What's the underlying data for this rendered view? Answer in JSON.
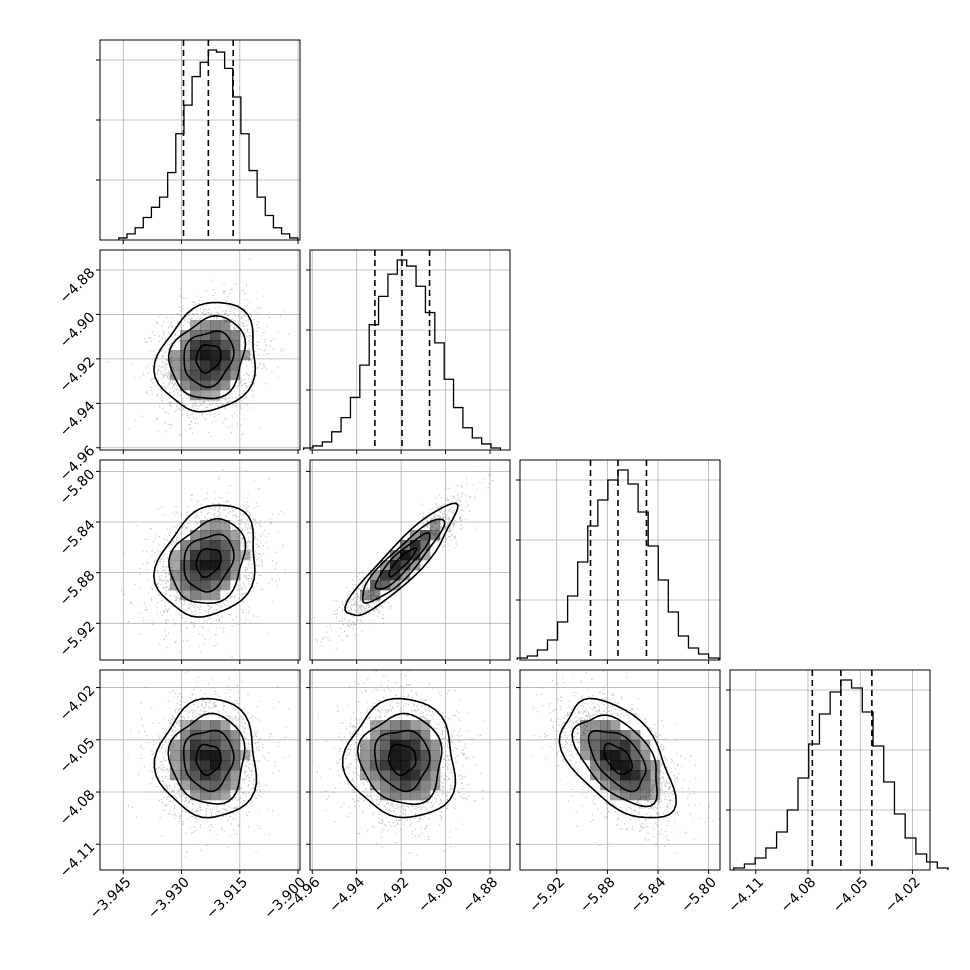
{
  "chart_data": {
    "type": "corner",
    "grid": true,
    "parameters": [
      {
        "range": [
          -3.951,
          -3.8995
        ],
        "ticks": [
          -3.945,
          -3.93,
          -3.915,
          -3.9
        ],
        "tick_labels": [
          "−3.945",
          "−3.930",
          "−3.915",
          "−3.900"
        ],
        "quantiles": [
          -3.9295,
          -3.9231,
          -3.9167
        ],
        "hist": [
          1,
          3,
          6,
          11,
          16,
          21,
          33,
          52,
          66,
          80,
          87,
          93,
          92,
          84,
          70,
          52,
          34,
          21,
          12,
          6,
          3,
          1
        ]
      },
      {
        "range": [
          -4.961,
          -4.871
        ],
        "ticks": [
          -4.96,
          -4.94,
          -4.92,
          -4.9,
          -4.88
        ],
        "tick_labels": [
          "−4.96",
          "−4.94",
          "−4.92",
          "−4.90",
          "−4.88"
        ],
        "quantiles": [
          -4.9318,
          -4.9196,
          -4.9072
        ],
        "hist": [
          1,
          2,
          4,
          9,
          16,
          26,
          42,
          62,
          76,
          87,
          94,
          91,
          81,
          68,
          53,
          35,
          21,
          11,
          6,
          3,
          1
        ]
      },
      {
        "range": [
          -5.949,
          -5.791
        ],
        "ticks": [
          -5.92,
          -5.88,
          -5.84,
          -5.8
        ],
        "tick_labels": [
          "−5.92",
          "−5.88",
          "−5.84",
          "−5.80"
        ],
        "quantiles": [
          -5.8933,
          -5.8716,
          -5.8491
        ],
        "hist": [
          1,
          2,
          5,
          10,
          19,
          32,
          49,
          67,
          80,
          90,
          95,
          88,
          74,
          57,
          40,
          24,
          12,
          6,
          3,
          1
        ]
      },
      {
        "range": [
          -4.1248,
          -4.0099
        ],
        "ticks": [
          -4.11,
          -4.08,
          -4.05,
          -4.02
        ],
        "tick_labels": [
          "−4.11",
          "−4.08",
          "−4.05",
          "−4.02"
        ],
        "quantiles": [
          -4.0775,
          -4.0611,
          -4.0433
        ],
        "hist": [
          1,
          3,
          6,
          11,
          19,
          30,
          46,
          63,
          78,
          89,
          95,
          91,
          79,
          62,
          44,
          28,
          16,
          8,
          4,
          1
        ]
      }
    ],
    "pairs": [
      {
        "row": 1,
        "col": 0,
        "correlation": 0.15
      },
      {
        "row": 2,
        "col": 0,
        "correlation": 0.2
      },
      {
        "row": 2,
        "col": 1,
        "correlation": 0.9
      },
      {
        "row": 3,
        "col": 0,
        "correlation": 0.0
      },
      {
        "row": 3,
        "col": 1,
        "correlation": -0.05
      },
      {
        "row": 3,
        "col": 2,
        "correlation": -0.5
      }
    ],
    "contour_levels_sigma": [
      0.5,
      1.0,
      1.5,
      2.0
    ],
    "colors": {
      "hist_line": "#000000",
      "points": "#7f7f7f",
      "density": "#000000",
      "grid": "#b0b0b0"
    }
  }
}
